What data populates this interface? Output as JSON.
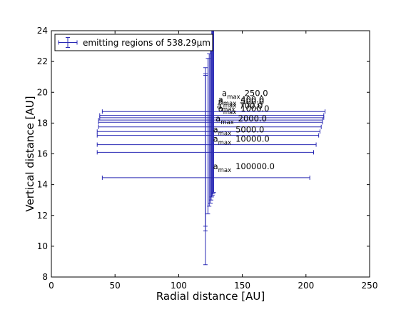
{
  "chart_data": {
    "type": "scatter",
    "title": "",
    "xlabel": "Radial distance [AU]",
    "ylabel": "Vertical distance [AU]",
    "xlim": [
      0,
      250
    ],
    "ylim": [
      8,
      24
    ],
    "xticks": [
      0,
      50,
      100,
      150,
      200,
      250
    ],
    "yticks": [
      8,
      10,
      12,
      14,
      16,
      18,
      20,
      22,
      24
    ],
    "grid": false,
    "legend": {
      "location": "top-left",
      "label": "emitting regions of 538.29μm"
    },
    "colors": {
      "series": "#2a2ab4",
      "axis": "#000000"
    },
    "series": [
      {
        "name": "emitting regions of 538.29μm",
        "points": [
          {
            "x": 127.5,
            "y": 18.75,
            "xmin": 40,
            "xmax": 215,
            "ymin": 13.5,
            "ymax": 24.0,
            "label": "a_max 250.0"
          },
          {
            "x": 127.0,
            "y": 18.5,
            "xmin": 38,
            "xmax": 214,
            "ymin": 13.4,
            "ymax": 24.0,
            "label": "a_max 400.0"
          },
          {
            "x": 126.5,
            "y": 18.35,
            "xmin": 38,
            "xmax": 214,
            "ymin": 13.3,
            "ymax": 24.0,
            "label": "a_max 500.0"
          },
          {
            "x": 126.0,
            "y": 18.2,
            "xmin": 37,
            "xmax": 213,
            "ymin": 13.2,
            "ymax": 24.0,
            "label": "a_max 700.0"
          },
          {
            "x": 125.5,
            "y": 18.05,
            "xmin": 37,
            "xmax": 213,
            "ymin": 13.0,
            "ymax": 23.7,
            "label": "a_max 1000.0"
          },
          {
            "x": 125.0,
            "y": 17.75,
            "xmin": 37,
            "xmax": 212,
            "ymin": 12.8,
            "ymax": 23.0,
            "label": "a_max 2000.0"
          },
          {
            "x": 124.0,
            "y": 17.45,
            "xmin": 36,
            "xmax": 211,
            "ymin": 12.6,
            "ymax": 22.5,
            "label": "a_max 5000.0"
          },
          {
            "x": 123.0,
            "y": 17.2,
            "xmin": 36,
            "xmax": 210,
            "ymin": 12.1,
            "ymax": 22.2,
            "label": "a_max 10000.0"
          },
          {
            "x": 121.0,
            "y": 16.6,
            "xmin": 36,
            "xmax": 208,
            "ymin": 11.0,
            "ymax": 21.6,
            "label": ""
          },
          {
            "x": 121.0,
            "y": 16.1,
            "xmin": 36,
            "xmax": 206,
            "ymin": 11.3,
            "ymax": 21.2,
            "label": ""
          },
          {
            "x": 121.0,
            "y": 14.45,
            "xmin": 40,
            "xmax": 203,
            "ymin": 8.8,
            "ymax": 21.1,
            "label": "a_max 100000.0"
          }
        ]
      }
    ],
    "annotations": [
      {
        "label": "a_max 250.0",
        "x": 134,
        "y": 19.75,
        "base": "a",
        "sub": "max",
        "value": "250.0"
      },
      {
        "label": "a_max 400.0",
        "x": 131,
        "y": 19.35,
        "base": "a",
        "sub": "max",
        "value": "400.0"
      },
      {
        "label": "a_max 500.0",
        "x": 131,
        "y": 19.2,
        "base": "a",
        "sub": "max",
        "value": "500.0"
      },
      {
        "label": "a_max 700.0",
        "x": 130,
        "y": 18.95,
        "base": "a",
        "sub": "max",
        "value": "700.0"
      },
      {
        "label": "a_max 1000.0",
        "x": 131,
        "y": 18.75,
        "base": "a",
        "sub": "max",
        "value": "1000.0"
      },
      {
        "label": "a_max 2000.0",
        "x": 129,
        "y": 18.1,
        "base": "a",
        "sub": "max",
        "value": "2000.0"
      },
      {
        "label": "a_max 5000.0",
        "x": 127,
        "y": 17.4,
        "base": "a",
        "sub": "max",
        "value": "5000.0"
      },
      {
        "label": "a_max 10000.0",
        "x": 127,
        "y": 16.8,
        "base": "a",
        "sub": "max",
        "value": "10000.0"
      },
      {
        "label": "a_max 100000.0",
        "x": 127,
        "y": 15.0,
        "base": "a",
        "sub": "max",
        "value": "100000.0"
      }
    ]
  }
}
